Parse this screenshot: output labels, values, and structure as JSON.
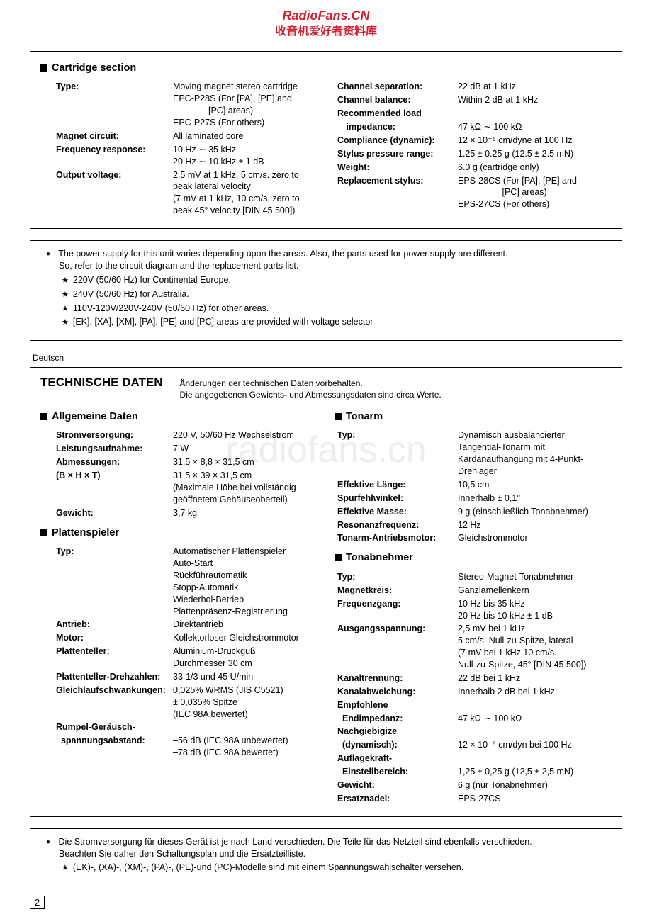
{
  "banner": {
    "line1": "RadioFans.CN",
    "line2": "收音机爱好者资料库"
  },
  "watermark": "radiofans.cn",
  "cartridge": {
    "title": "Cartridge section",
    "left": [
      {
        "label": "Type:",
        "lines": [
          "Moving magnet stereo cartridge",
          "EPC-P28S (For [PA], [PE] and",
          "    [PC] areas)",
          "EPC-P27S (For others)"
        ]
      },
      {
        "label": "Magnet circuit:",
        "lines": [
          "All laminated core"
        ]
      },
      {
        "label": "Frequency response:",
        "lines": [
          "10 Hz ∼ 35 kHz",
          "20 Hz ∼ 10 kHz ± 1 dB"
        ]
      },
      {
        "label": "Output voltage:",
        "lines": [
          "2.5 mV at 1 kHz, 5 cm/s. zero to",
          "peak lateral velocity",
          "(7 mV at 1 kHz, 10 cm/s. zero to",
          "peak 45° velocity [DIN 45 500])"
        ]
      }
    ],
    "right": [
      {
        "label": "Channel separation:",
        "lines": [
          "22 dB at 1 kHz"
        ]
      },
      {
        "label": "Channel balance:",
        "lines": [
          "Within 2 dB at 1 kHz"
        ]
      },
      {
        "label": "Recommended load",
        "lines": [
          ""
        ]
      },
      {
        "label": " impedance:",
        "lines": [
          "47 kΩ ∼ 100 kΩ"
        ]
      },
      {
        "label": "Compliance (dynamic):",
        "lines": [
          "12 × 10⁻⁶ cm/dyne at 100 Hz"
        ]
      },
      {
        "label": "Stylus pressure range:",
        "lines": [
          "1.25 ± 0.25 g (12.5 ± 2.5 mN)"
        ]
      },
      {
        "label": "Weight:",
        "lines": [
          "6.0 g (cartridge only)"
        ]
      },
      {
        "label": "Replacement stylus:",
        "lines": [
          "EPS-28CS (For [PA], [PE] and",
          "     [PC] areas)",
          "EPS-27CS (For others)"
        ]
      }
    ]
  },
  "power_note_en": {
    "intro1": "The power supply for this unit varies depending upon the areas.  Also, the parts used for power supply are different.",
    "intro2": "So, refer to the circuit diagram and the replacement parts list.",
    "items": [
      "220V (50/60 Hz) for Continental Europe.",
      "240V (50/60 Hz) for Australia.",
      "110V-120V/220V-240V (50/60 Hz) for other areas.",
      "[EK], [XA], [XM], [PA], [PE] and [PC] areas are provided with voltage selector"
    ]
  },
  "lang_label": "Deutsch",
  "technische": {
    "header": "TECHNISCHE DATEN",
    "subnote1": "Änderungen der technischen Daten vorbehalten.",
    "subnote2": "Die angegebenen Gewichts- und Abmessungsdaten sind circa Werte.",
    "allgemeine": {
      "title": "Allgemeine Daten",
      "rows": [
        {
          "label": "Stromversorgung:",
          "lines": [
            "220 V,  50/60 Hz Wechselstrom"
          ]
        },
        {
          "label": "Leistungsaufnahme:",
          "lines": [
            "7 W"
          ]
        },
        {
          "label": "Abmessungen:",
          "lines": [
            "31,5 × 8,8 × 31,5 cm"
          ]
        },
        {
          "label": "(B × H × T)",
          "lines": [
            "31,5 × 39 × 31,5 cm",
            "(Maximale Höhe bei vollständig",
            "geöffnetem Gehäuseoberteil)"
          ]
        },
        {
          "label": "Gewicht:",
          "lines": [
            "3,7 kg"
          ]
        }
      ]
    },
    "plattenspieler": {
      "title": "Plattenspieler",
      "rows": [
        {
          "label": "Typ:",
          "lines": [
            "Automatischer Plattenspieler",
            "Auto-Start",
            "Rückführautomatik",
            "Stopp-Automatik",
            "Wiederhol-Betrieb",
            "Plattenpräsenz-Registrierung"
          ]
        },
        {
          "label": "Antrieb:",
          "lines": [
            "Direktantrieb"
          ]
        },
        {
          "label": "Motor:",
          "lines": [
            "Kollektorloser Gleichstrommotor"
          ]
        },
        {
          "label": "Plattenteller:",
          "lines": [
            "Aluminium-Druckguß",
            "Durchmesser 30 cm"
          ]
        },
        {
          "label": "Plattenteller-Drehzahlen:",
          "lines": [
            "33-1/3 und 45 U/min"
          ]
        },
        {
          "label": "Gleichlaufschwankungen:",
          "lines": [
            "0,025% WRMS (JIS C5521)",
            "± 0,035% Spitze",
            "(IEC 98A bewertet)"
          ]
        },
        {
          "label": "Rumpel-Geräusch-",
          "lines": [
            ""
          ]
        },
        {
          "label": "  spannungsabstand:",
          "lines": [
            "–56 dB (IEC 98A unbewertet)",
            "–78 dB (IEC 98A bewertet)"
          ]
        }
      ]
    },
    "tonarm": {
      "title": "Tonarm",
      "rows": [
        {
          "label": "Typ:",
          "lines": [
            "Dynamisch ausbalancierter",
            "Tangential-Tonarm mit",
            "Kardanaufhängung mit 4-Punkt-",
            "Drehlager"
          ]
        },
        {
          "label": "Effektive Länge:",
          "lines": [
            "10,5 cm"
          ]
        },
        {
          "label": "Spurfehlwinkel:",
          "lines": [
            "Innerhalb ± 0,1°"
          ]
        },
        {
          "label": "Effektive Masse:",
          "lines": [
            "9 g (einschließlich Tonabnehmer)"
          ]
        },
        {
          "label": "Resonanzfrequenz:",
          "lines": [
            "12 Hz"
          ]
        },
        {
          "label": "Tonarm-Antriebsmotor:",
          "lines": [
            "Gleichstrommotor"
          ]
        }
      ]
    },
    "tonabnehmer": {
      "title": "Tonabnehmer",
      "rows": [
        {
          "label": "Typ:",
          "lines": [
            "Stereo-Magnet-Tonabnehmer"
          ]
        },
        {
          "label": "Magnetkreis:",
          "lines": [
            "Ganzlamellenkern"
          ]
        },
        {
          "label": "Frequenzgang:",
          "lines": [
            "10 Hz bis 35 kHz",
            "20 Hz bis 10 kHz ± 1 dB"
          ]
        },
        {
          "label": "Ausgangsspannung:",
          "lines": [
            "2,5 mV bei 1 kHz",
            "5 cm/s. Null-zu-Spitze, lateral",
            "(7 mV bei 1 kHz 10 cm/s.",
            "Null-zu-Spitze, 45° [DIN 45 500])"
          ]
        },
        {
          "label": "Kanaltrennung:",
          "lines": [
            "22 dB bei 1 kHz"
          ]
        },
        {
          "label": "Kanalabweichung:",
          "lines": [
            "Innerhalb 2 dB bei 1 kHz"
          ]
        },
        {
          "label": "Empfohlene",
          "lines": [
            ""
          ]
        },
        {
          "label": "  Endimpedanz:",
          "lines": [
            "47 kΩ ∼ 100 kΩ"
          ]
        },
        {
          "label": "Nachgiebigize",
          "lines": [
            ""
          ]
        },
        {
          "label": "  (dynamisch):",
          "lines": [
            "12 × 10⁻⁶ cm/dyn bei 100 Hz"
          ]
        },
        {
          "label": "Auflagekraft-",
          "lines": [
            ""
          ]
        },
        {
          "label": "  Einstellbereich:",
          "lines": [
            "1,25 ± 0,25 g (12,5 ± 2,5 mN)"
          ]
        },
        {
          "label": "Gewicht:",
          "lines": [
            "6 g (nur Tonabnehmer)"
          ]
        },
        {
          "label": "Ersatznadel:",
          "lines": [
            "EPS-27CS"
          ]
        }
      ]
    }
  },
  "power_note_de": {
    "intro1": "Die Stromversorgung für dieses Gerät ist je nach Land verschieden.  Die Teile für das Netzteil sind ebenfalls verschieden.",
    "intro2": "Beachten Sie daher den Schaltungsplan und die Ersatzteilliste.",
    "items": [
      "(EK)-, (XA)-, (XM)-, (PA)-, (PE)-und (PC)-Modelle sind mit einem Spannungswahlschalter versehen."
    ]
  },
  "page_number": "2"
}
